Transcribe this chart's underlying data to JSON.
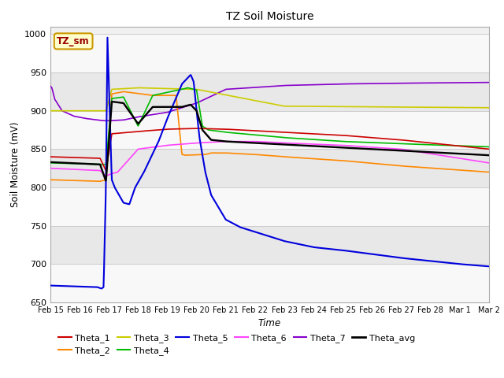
{
  "title": "TZ Soil Moisture",
  "xlabel": "Time",
  "ylabel": "Soil Moisture (mV)",
  "ylim": [
    650,
    1010
  ],
  "xlim": [
    0,
    15
  ],
  "xtick_labels": [
    "Feb 15",
    "Feb 16",
    "Feb 17",
    "Feb 18",
    "Feb 19",
    "Feb 20",
    "Feb 21",
    "Feb 22",
    "Feb 23",
    "Feb 24",
    "Feb 25",
    "Feb 26",
    "Feb 27",
    "Feb 28",
    "Mar 1",
    "Mar 2"
  ],
  "bg_color": "#ffffff",
  "plot_bg_light": "#f0f0f0",
  "plot_bg_dark": "#e0e0e0",
  "label_box_text": "TZ_sm",
  "label_box_color": "#ffffcc",
  "label_box_edge": "#cc9900",
  "colors": {
    "Theta_1": "#cc0000",
    "Theta_2": "#ff8800",
    "Theta_3": "#cccc00",
    "Theta_4": "#00bb00",
    "Theta_5": "#0000dd",
    "Theta_6": "#ff44ff",
    "Theta_7": "#8800cc",
    "Theta_avg": "#000000"
  },
  "yticks": [
    650,
    700,
    750,
    800,
    850,
    900,
    950,
    1000
  ]
}
